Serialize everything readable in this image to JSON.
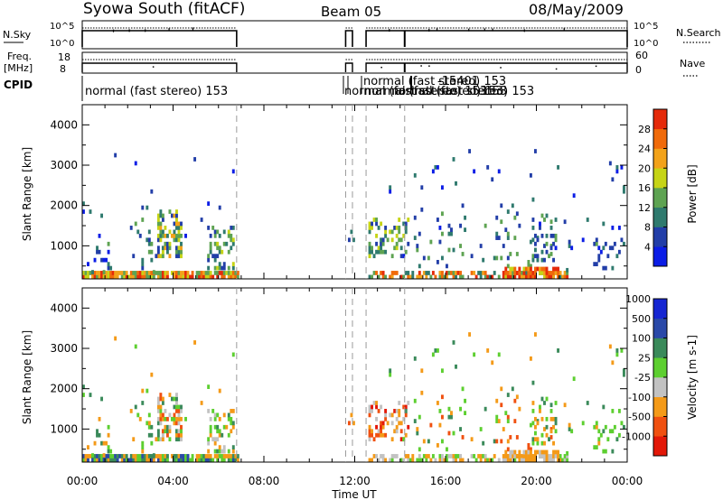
{
  "header": {
    "station": "Syowa South (fitACF)",
    "beam": "Beam 05",
    "date": "08/May/2009"
  },
  "strip_labels": {
    "nsky": "N.Sky",
    "nsky_ticks": [
      "10^5",
      "10^0"
    ],
    "nsearch": "N.Search",
    "freq_line1": "Freq.",
    "freq_line2": "[MHz]",
    "freq_ticks": [
      "18",
      "8"
    ],
    "nave_ticks": [
      "60",
      "0"
    ],
    "nave": "Nave",
    "cpid": "CPID"
  },
  "cpid_labels": [
    "normal (fast stereo) 153",
    "normal (fast stereo) 153",
    "normal (fast stereo) 153",
    "normal (fast stereo) 153",
    "normal (fast stereo) 153",
    "-15401",
    "153"
  ],
  "colors": {
    "power": [
      "#0b1de6",
      "#223ea8",
      "#2f7a6e",
      "#5ea352",
      "#c6d416",
      "#f2a21a",
      "#f06a0a",
      "#e52a0a"
    ],
    "velocity": [
      "#e31808",
      "#f05010",
      "#f49a18",
      "#c2c2c2",
      "#5dcf30",
      "#3a8a5a",
      "#2a49a8",
      "#1626d2"
    ]
  },
  "chart_data": [
    {
      "type": "heatmap",
      "panel": "power",
      "ylabel": "Slant Range [km]",
      "ylim": [
        180,
        4500
      ],
      "xlim": [
        "00:00",
        "24:00"
      ],
      "x_ticks": [
        "00:00",
        "04:00",
        "08:00",
        "12:00",
        "16:00",
        "20:00",
        "00:00"
      ],
      "y_ticks": [
        1000,
        2000,
        3000,
        4000
      ],
      "colorbar_label": "Power [dB]",
      "colorbar_ticks": [
        "4",
        "8",
        "12",
        "16",
        "20",
        "24",
        "28"
      ],
      "data_gaps_hours": [
        [
          6.8,
          11.6
        ],
        [
          11.9,
          12.5
        ]
      ],
      "dashed_lines_hours": [
        6.8,
        11.6,
        11.9,
        12.5,
        14.2
      ]
    },
    {
      "type": "heatmap",
      "panel": "velocity",
      "ylabel": "Slant Range [km]",
      "xlabel": "Time UT",
      "ylim": [
        180,
        4500
      ],
      "xlim": [
        "00:00",
        "24:00"
      ],
      "x_ticks": [
        "00:00",
        "04:00",
        "08:00",
        "12:00",
        "16:00",
        "20:00",
        "00:00"
      ],
      "y_ticks": [
        1000,
        2000,
        3000,
        4000
      ],
      "colorbar_label": "Velocity [m s-1]",
      "colorbar_ticks": [
        "-1000",
        "-500",
        "-100",
        "-25",
        "25",
        "100",
        "500",
        "1000"
      ],
      "data_gaps_hours": [
        [
          6.8,
          11.6
        ],
        [
          11.9,
          12.5
        ]
      ],
      "dashed_lines_hours": [
        6.8,
        11.6,
        11.9,
        12.5,
        14.2
      ]
    }
  ]
}
